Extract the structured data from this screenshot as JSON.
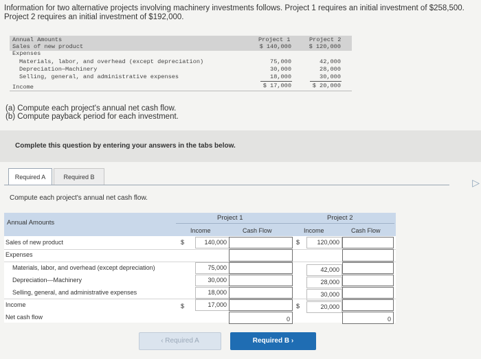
{
  "intro": {
    "line1": "Information for two alternative projects involving machinery investments follows. Project 1 requires an initial investment of $258,500.",
    "line2": "Project 2 requires an initial investment of $192,000."
  },
  "exhibit": {
    "col1": "Project 1",
    "col2": "Project 2",
    "rows": [
      {
        "label": "Annual Amounts",
        "p1": "",
        "p2": ""
      },
      {
        "label": "Sales of new product",
        "p1": "$ 140,000",
        "p2": "$ 120,000"
      },
      {
        "label": "Expenses",
        "p1": "",
        "p2": ""
      },
      {
        "label": "Materials, labor, and overhead (except depreciation)",
        "p1": "75,000",
        "p2": "42,000"
      },
      {
        "label": "Depreciation—Machinery",
        "p1": "30,000",
        "p2": "28,000"
      },
      {
        "label": "Selling, general, and administrative expenses",
        "p1": "18,000",
        "p2": "30,000"
      },
      {
        "label": "Income",
        "p1": "$ 17,000",
        "p2": "$ 20,000"
      }
    ]
  },
  "questions": {
    "a": "(a) Compute each project's annual net cash flow.",
    "b": "(b) Compute payback period for each investment."
  },
  "instruction": "Complete this question by entering your answers in the tabs below.",
  "tabs": {
    "a": "Required A",
    "b": "Required B"
  },
  "prompt": "Compute each project's annual net cash flow.",
  "table": {
    "annual_amounts": "Annual Amounts",
    "project1": "Project 1",
    "project2": "Project 2",
    "income_hdr": "Income",
    "cashflow_hdr": "Cash Flow",
    "rows": {
      "sales": "Sales of new product",
      "expenses": "Expenses",
      "materials": "Materials, labor, and overhead (except depreciation)",
      "depreciation": "Depreciation—Machinery",
      "selling": "Selling, general, and administrative expenses",
      "income": "Income",
      "net": "Net cash flow"
    },
    "p1": {
      "sales": "140,000",
      "materials": "75,000",
      "depreciation": "30,000",
      "selling": "18,000",
      "income": "17,000",
      "net": "0"
    },
    "p2": {
      "sales": "120,000",
      "materials": "42,000",
      "depreciation": "28,000",
      "selling": "30,000",
      "income": "20,000",
      "net": "0"
    },
    "dollar": "$"
  },
  "buttons": {
    "prev": "‹ Required A",
    "next": "Required B ›"
  },
  "colors": {
    "header": "#c9d8ea",
    "next_button": "#1f6db3"
  }
}
